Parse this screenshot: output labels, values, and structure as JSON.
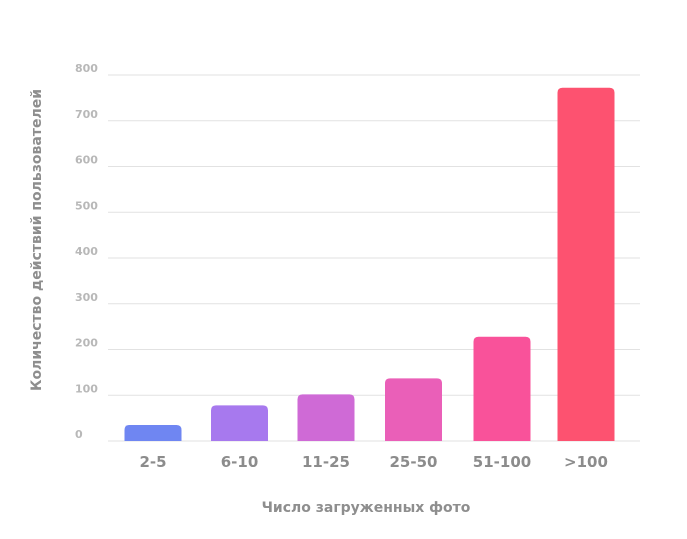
{
  "chart_data": {
    "type": "bar",
    "categories": [
      "2-5",
      "6-10",
      "11-25",
      "25-50",
      "51-100",
      ">100"
    ],
    "values": [
      35,
      78,
      102,
      137,
      228,
      772
    ],
    "xlabel": "Число загруженных фото",
    "ylabel": "Количество действий пользователей",
    "ylim": [
      0,
      800
    ],
    "yticks": [
      0,
      100,
      200,
      300,
      400,
      500,
      600,
      700,
      800
    ],
    "grid": true,
    "legend": "none",
    "colors": [
      "#6f86f2",
      "#a779ee",
      "#cf6ad6",
      "#ea5fb8",
      "#f9529a",
      "#fd5270"
    ]
  }
}
